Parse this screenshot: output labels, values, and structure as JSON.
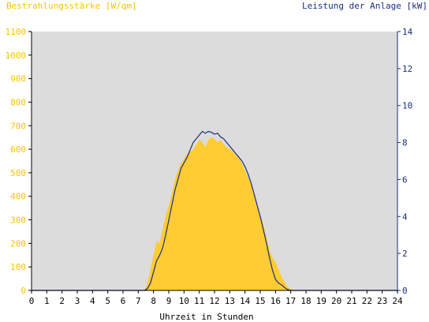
{
  "chart_data": {
    "type": "area",
    "title_left": "Bestrahlungsstärke [W/qm]",
    "title_right": "Leistung der Anlage [kW]",
    "xlabel": "Uhrzeit in Stunden",
    "xlim": [
      0,
      24
    ],
    "ylim_left": [
      0,
      1100
    ],
    "ylim_right": [
      0,
      14
    ],
    "x_ticks": [
      "0",
      "1",
      "2",
      "3",
      "4",
      "5",
      "6",
      "7",
      "8",
      "9",
      "10",
      "11",
      "12",
      "13",
      "14",
      "15",
      "16",
      "17",
      "18",
      "19",
      "20",
      "21",
      "22",
      "23",
      "24"
    ],
    "y_left_ticks": [
      "0",
      "100",
      "200",
      "300",
      "400",
      "500",
      "600",
      "700",
      "800",
      "900",
      "1000",
      "1100"
    ],
    "y_right_ticks": [
      "0",
      "2",
      "4",
      "6",
      "8",
      "10",
      "12",
      "14"
    ],
    "grid": false,
    "colors": {
      "irradiance": "#ffcc33",
      "power": "#1a2f7a",
      "plot_bg": "#dcdcdc",
      "left_axis_text": "#f5c400",
      "right_axis_text": "#1a2f7a"
    },
    "series": [
      {
        "name": "Bestrahlungsstärke",
        "axis": "left",
        "style": "filled-area",
        "x": [
          0,
          7.4,
          7.6,
          7.8,
          8.0,
          8.2,
          8.4,
          8.6,
          8.8,
          9.0,
          9.2,
          9.4,
          9.6,
          9.8,
          10.0,
          10.2,
          10.4,
          10.6,
          10.8,
          11.0,
          11.2,
          11.4,
          11.6,
          11.8,
          12.0,
          12.2,
          12.4,
          12.6,
          12.8,
          13.0,
          13.2,
          13.4,
          13.6,
          13.8,
          14.0,
          14.2,
          14.4,
          14.6,
          14.8,
          15.0,
          15.2,
          15.4,
          15.6,
          15.8,
          16.0,
          16.2,
          16.4,
          16.6,
          16.8,
          17.0,
          17.2,
          24
        ],
        "values": [
          0,
          0,
          30,
          90,
          150,
          210,
          200,
          260,
          320,
          360,
          410,
          470,
          510,
          540,
          560,
          580,
          590,
          600,
          620,
          640,
          630,
          610,
          640,
          650,
          645,
          630,
          640,
          620,
          610,
          600,
          590,
          575,
          560,
          540,
          510,
          480,
          450,
          410,
          370,
          320,
          280,
          230,
          170,
          140,
          120,
          90,
          60,
          35,
          15,
          5,
          0,
          0
        ]
      },
      {
        "name": "Leistung der Anlage",
        "axis": "right",
        "style": "line",
        "x": [
          0,
          7.4,
          7.6,
          7.8,
          8.0,
          8.2,
          8.4,
          8.6,
          8.8,
          9.0,
          9.2,
          9.4,
          9.6,
          9.8,
          10.0,
          10.2,
          10.4,
          10.6,
          10.8,
          11.0,
          11.2,
          11.4,
          11.6,
          11.8,
          12.0,
          12.2,
          12.4,
          12.6,
          12.8,
          13.0,
          13.2,
          13.4,
          13.6,
          13.8,
          14.0,
          14.2,
          14.4,
          14.6,
          14.8,
          15.0,
          15.2,
          15.4,
          15.6,
          15.8,
          16.0,
          16.2,
          16.4,
          16.6,
          16.8,
          17.0,
          17.2,
          24
        ],
        "values": [
          0,
          0,
          0.1,
          0.4,
          1.0,
          1.6,
          1.9,
          2.3,
          3.0,
          3.8,
          4.6,
          5.4,
          6.0,
          6.6,
          6.9,
          7.2,
          7.6,
          8.0,
          8.2,
          8.4,
          8.6,
          8.5,
          8.6,
          8.55,
          8.45,
          8.5,
          8.3,
          8.2,
          8.0,
          7.8,
          7.6,
          7.4,
          7.2,
          7.0,
          6.7,
          6.3,
          5.8,
          5.2,
          4.6,
          4.0,
          3.3,
          2.6,
          1.8,
          1.1,
          0.6,
          0.4,
          0.3,
          0.15,
          0.05,
          0,
          0,
          0
        ]
      }
    ]
  }
}
